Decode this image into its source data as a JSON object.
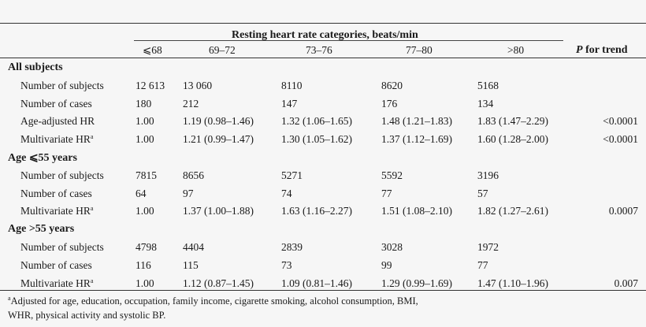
{
  "header": {
    "group_title": "Resting heart rate categories, beats/min",
    "columns": [
      "⩽68",
      "69–72",
      "73–76",
      "77–80",
      ">80"
    ],
    "p_for_trend_italic": "P",
    "p_for_trend_rest": " for trend"
  },
  "sections": [
    {
      "title": "All subjects",
      "rows": [
        {
          "label": "Number of subjects",
          "sup": "",
          "values": [
            "12 613",
            "13 060",
            "8110",
            "8620",
            "5168"
          ],
          "p": ""
        },
        {
          "label": "Number of cases",
          "sup": "",
          "values": [
            "180",
            "212",
            "147",
            "176",
            "134"
          ],
          "p": ""
        },
        {
          "label": "Age-adjusted HR",
          "sup": "",
          "values": [
            "1.00",
            "1.19 (0.98–1.46)",
            "1.32 (1.06–1.65)",
            "1.48 (1.21–1.83)",
            "1.83 (1.47–2.29)"
          ],
          "p": "<0.0001"
        },
        {
          "label": "Multivariate HR",
          "sup": "a",
          "values": [
            "1.00",
            "1.21 (0.99–1.47)",
            "1.30 (1.05–1.62)",
            "1.37 (1.12–1.69)",
            "1.60 (1.28–2.00)"
          ],
          "p": "<0.0001"
        }
      ]
    },
    {
      "title": "Age ⩽55 years",
      "rows": [
        {
          "label": "Number of subjects",
          "sup": "",
          "values": [
            "7815",
            "8656",
            "5271",
            "5592",
            "3196"
          ],
          "p": ""
        },
        {
          "label": "Number of cases",
          "sup": "",
          "values": [
            "64",
            "97",
            "74",
            "77",
            "57"
          ],
          "p": ""
        },
        {
          "label": "Multivariate HR",
          "sup": "a",
          "values": [
            "1.00",
            "1.37 (1.00–1.88)",
            "1.63 (1.16–2.27)",
            "1.51 (1.08–2.10)",
            "1.82 (1.27–2.61)"
          ],
          "p": "0.0007"
        }
      ]
    },
    {
      "title": "Age >55 years",
      "rows": [
        {
          "label": "Number of subjects",
          "sup": "",
          "values": [
            "4798",
            "4404",
            "2839",
            "3028",
            "1972"
          ],
          "p": ""
        },
        {
          "label": "Number of cases",
          "sup": "",
          "values": [
            "116",
            "115",
            "73",
            "99",
            "77"
          ],
          "p": ""
        },
        {
          "label": "Multivariate HR",
          "sup": "a",
          "values": [
            "1.00",
            "1.12 (0.87–1.45)",
            "1.09 (0.81–1.46)",
            "1.29 (0.99–1.69)",
            "1.47 (1.10–1.96)"
          ],
          "p": "0.007"
        }
      ]
    }
  ],
  "footnote": {
    "sup": "a",
    "line1": "Adjusted for age, education, occupation, family income, cigarette smoking, alcohol consumption, BMI,",
    "line2": "WHR, physical activity and systolic BP."
  }
}
